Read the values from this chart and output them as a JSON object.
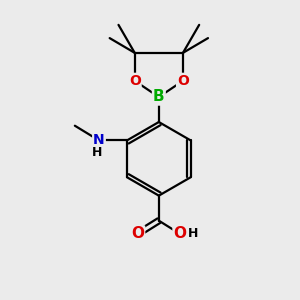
{
  "background_color": "#ebebeb",
  "atom_colors": {
    "C": "#000000",
    "H": "#000000",
    "N": "#0000cc",
    "O": "#dd0000",
    "B": "#00aa00"
  },
  "figsize": [
    3.0,
    3.0
  ],
  "dpi": 100,
  "bond_lw": 1.6
}
